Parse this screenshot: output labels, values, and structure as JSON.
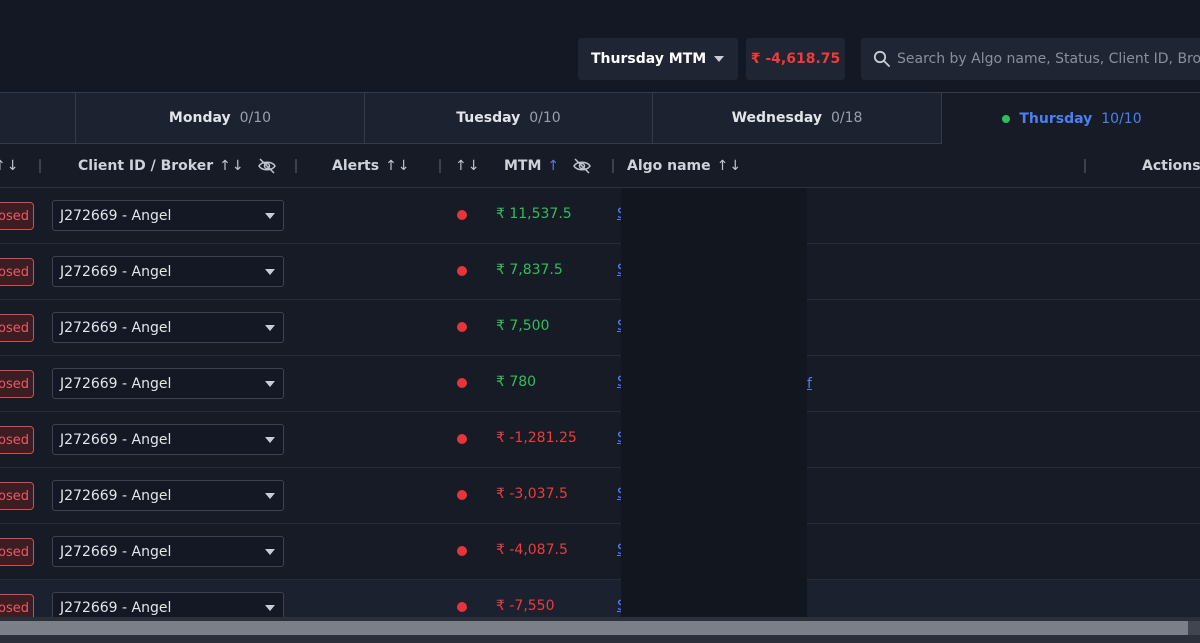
{
  "toolbar": {
    "mtm_select_label": "Thursday MTM",
    "total_mtm": "₹ -4,618.75",
    "search_placeholder": "Search by Algo name, Status, Client ID, Broker"
  },
  "tabs": [
    {
      "name": "Monday",
      "count": "0/10",
      "active": false
    },
    {
      "name": "Tuesday",
      "count": "0/10",
      "active": false
    },
    {
      "name": "Wednesday",
      "count": "0/18",
      "active": false
    },
    {
      "name": "Thursday",
      "count": "10/10",
      "active": true
    }
  ],
  "columns": {
    "client": "Client ID / Broker",
    "alerts": "Alerts",
    "mtm": "MTM",
    "algo": "Algo name",
    "actions": "Actions",
    "sort_glyph": "↑↓",
    "sort_up_glyph": "↑"
  },
  "rows": [
    {
      "status": "osed",
      "client": "J272669 - Angel",
      "mtm": "₹ 11,537.5",
      "mtm_sign": "pos",
      "algo": "S"
    },
    {
      "status": "osed",
      "client": "J272669 - Angel",
      "mtm": "₹ 7,837.5",
      "mtm_sign": "pos",
      "algo": "S"
    },
    {
      "status": "osed",
      "client": "J272669 - Angel",
      "mtm": "₹ 7,500",
      "mtm_sign": "pos",
      "algo": "S"
    },
    {
      "status": "osed",
      "client": "J272669 - Angel",
      "mtm": "₹ 780",
      "mtm_sign": "pos",
      "algo": "S"
    },
    {
      "status": "osed",
      "client": "J272669 - Angel",
      "mtm": "₹ -1,281.25",
      "mtm_sign": "neg",
      "algo": "S"
    },
    {
      "status": "osed",
      "client": "J272669 - Angel",
      "mtm": "₹ -3,037.5",
      "mtm_sign": "neg",
      "algo": "S"
    },
    {
      "status": "osed",
      "client": "J272669 - Angel",
      "mtm": "₹ -4,087.5",
      "mtm_sign": "neg",
      "algo": "S"
    },
    {
      "status": "osed",
      "client": "J272669 - Angel",
      "mtm": "₹ -7,550",
      "mtm_sign": "neg",
      "algo": "S"
    }
  ],
  "overlay_link_text": "f",
  "colors": {
    "positive": "#2fbf5a",
    "negative": "#ef3b3b",
    "accent": "#4c7ff0",
    "status_closed": "#ef5a5f"
  }
}
